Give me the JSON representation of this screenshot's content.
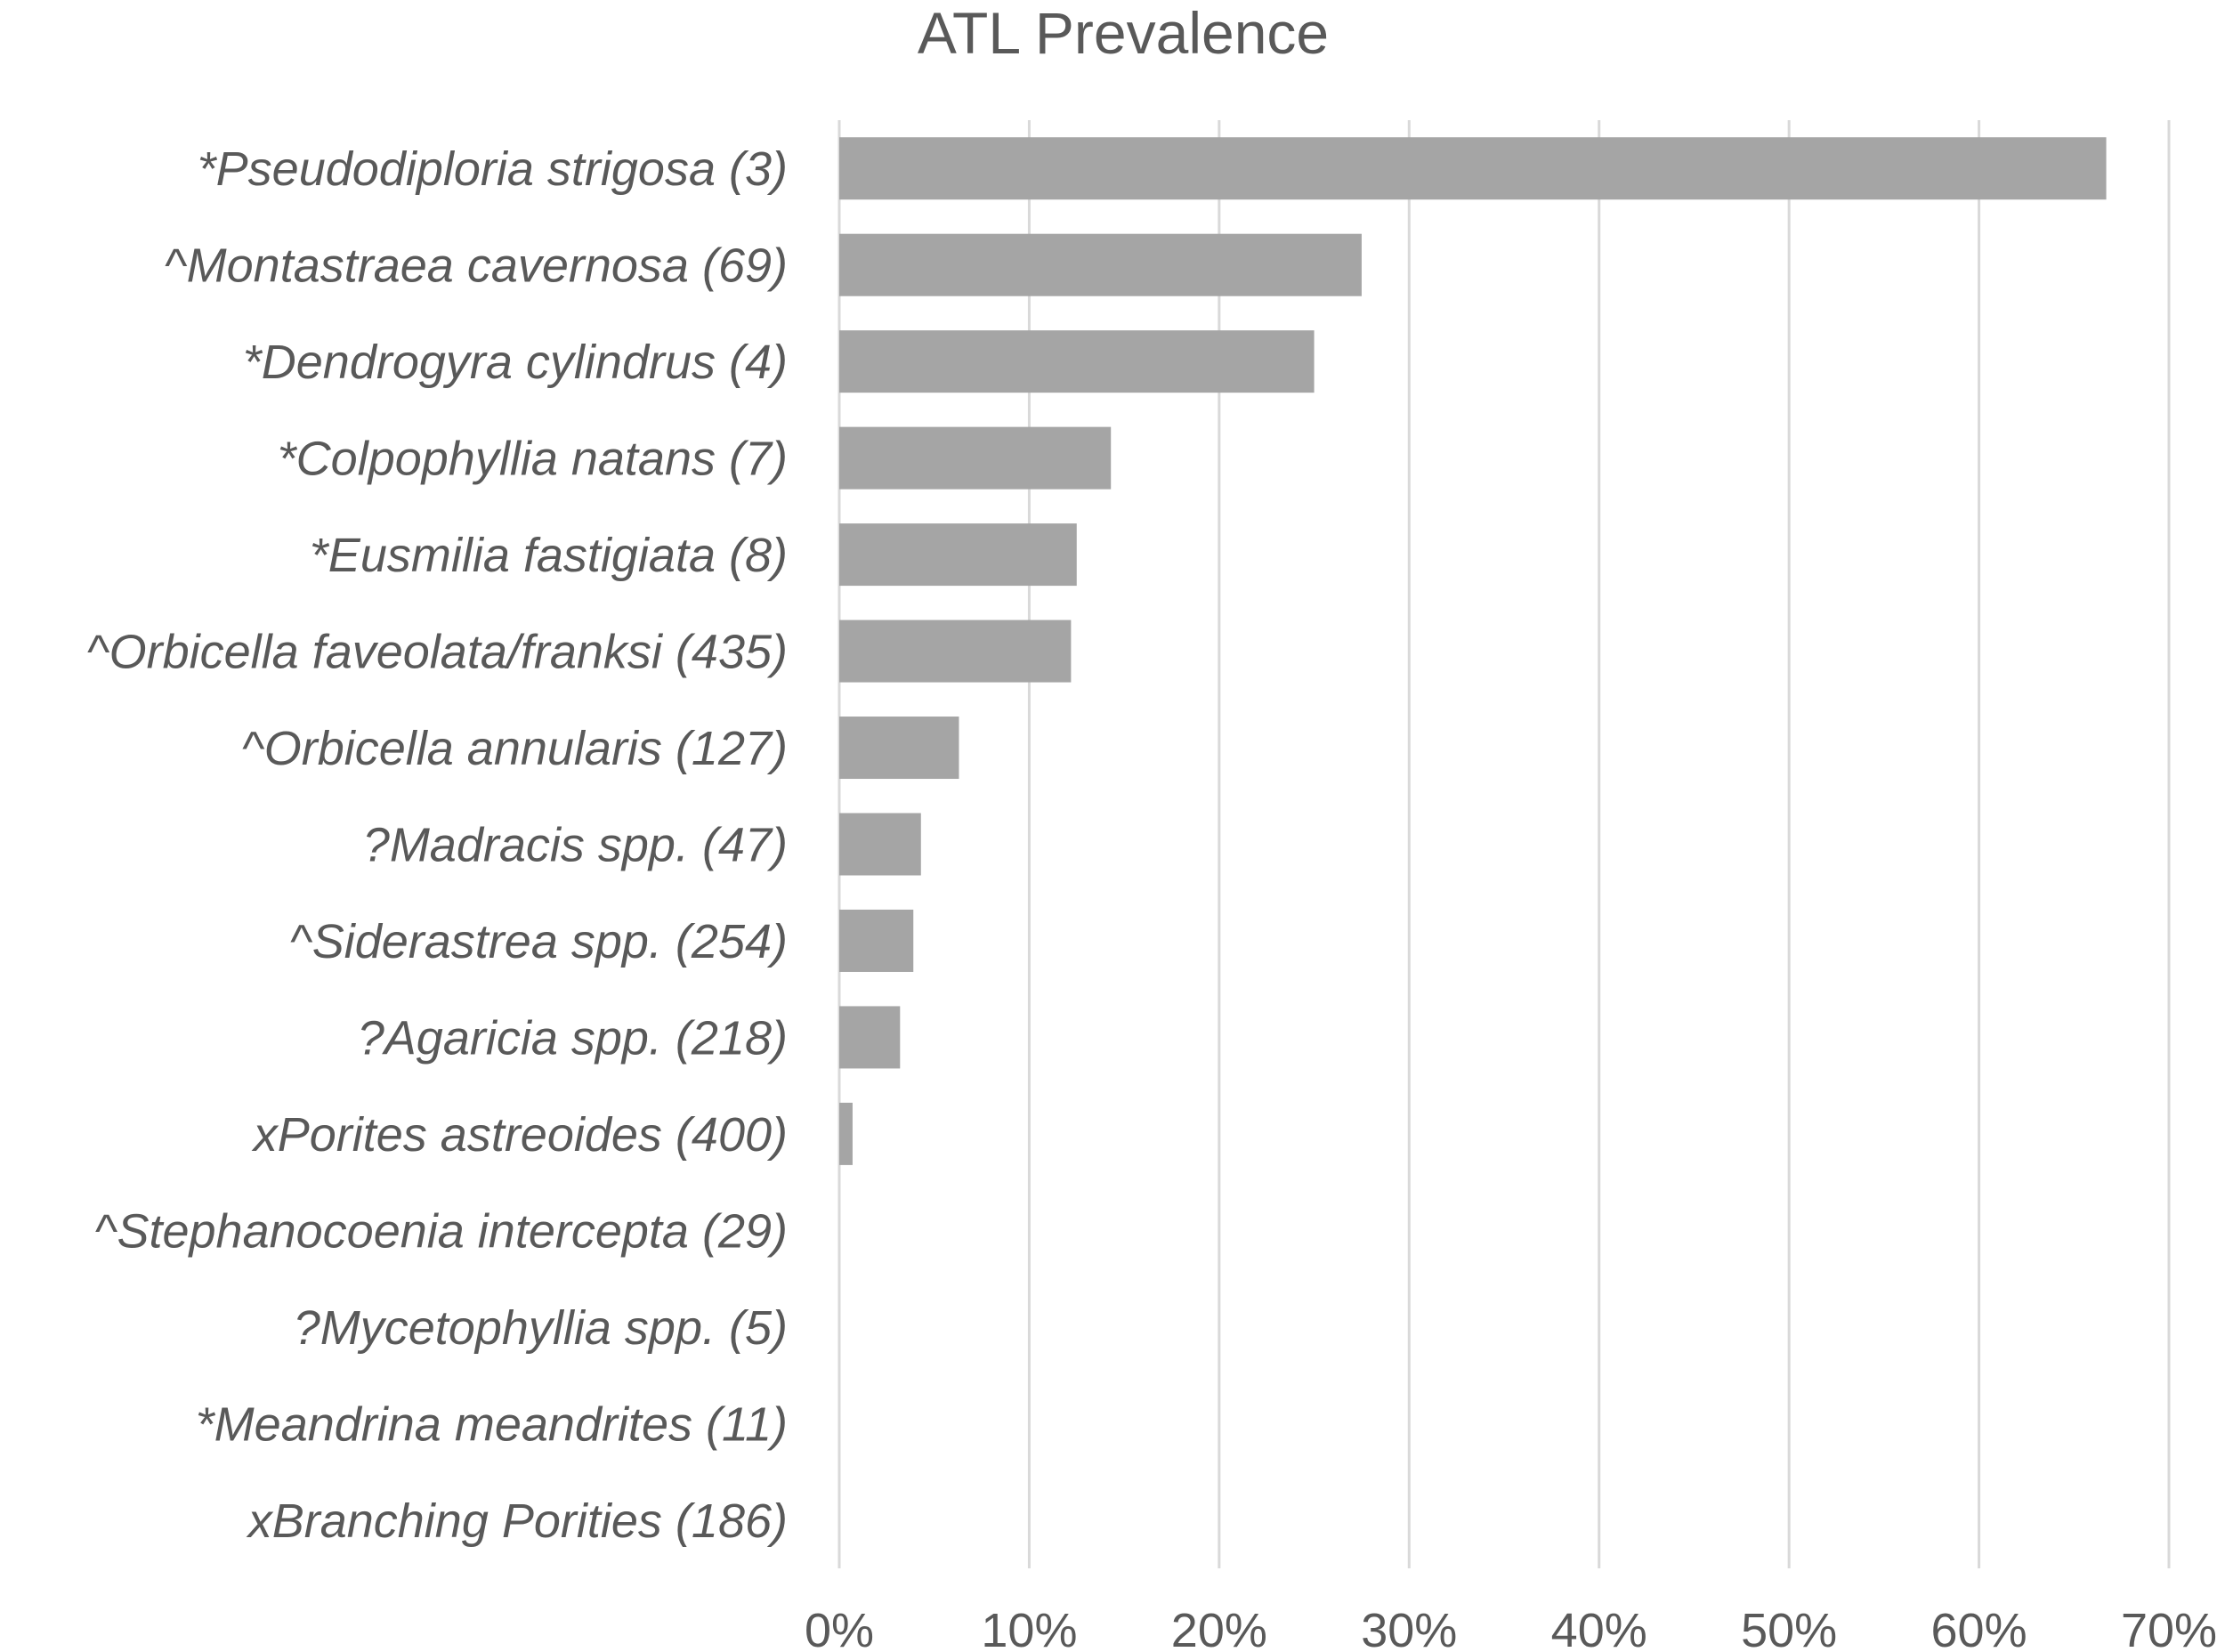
{
  "chart_data": {
    "type": "bar",
    "orientation": "horizontal",
    "title": "ATL Prevalence",
    "xlabel": "",
    "ylabel": "",
    "xlim": [
      0,
      0.7
    ],
    "ticks": [
      0,
      0.1,
      0.2,
      0.3,
      0.4,
      0.5,
      0.6,
      0.7
    ],
    "tick_labels": [
      "0%",
      "10%",
      "20%",
      "30%",
      "40%",
      "50%",
      "60%",
      "70%"
    ],
    "grid": true,
    "legend": "none",
    "bar_color": "#a5a5a5",
    "categories": [
      "*Pseudodiploria strigosa (3)",
      "^Montastraea cavernosa (69)",
      "*Dendrogyra cylindrus (4)",
      "*Colpophyllia natans (7)",
      "*Eusmilia fastigiata (8)",
      "^Orbicella faveolata/franksi (435)",
      "^Orbicella annularis (127)",
      "?Madracis spp. (47)",
      "^Siderastrea spp. (254)",
      "?Agaricia spp. (218)",
      "xPorites astreoides (400)",
      "^Stephanocoenia intercepta (29)",
      "?Mycetophyllia spp. (5)",
      "*Meandrina meandrites (11)",
      "xBranching Porities (186)"
    ],
    "values": [
      0.667,
      0.275,
      0.25,
      0.143,
      0.125,
      0.122,
      0.063,
      0.043,
      0.039,
      0.032,
      0.007,
      0,
      0,
      0,
      0
    ]
  }
}
